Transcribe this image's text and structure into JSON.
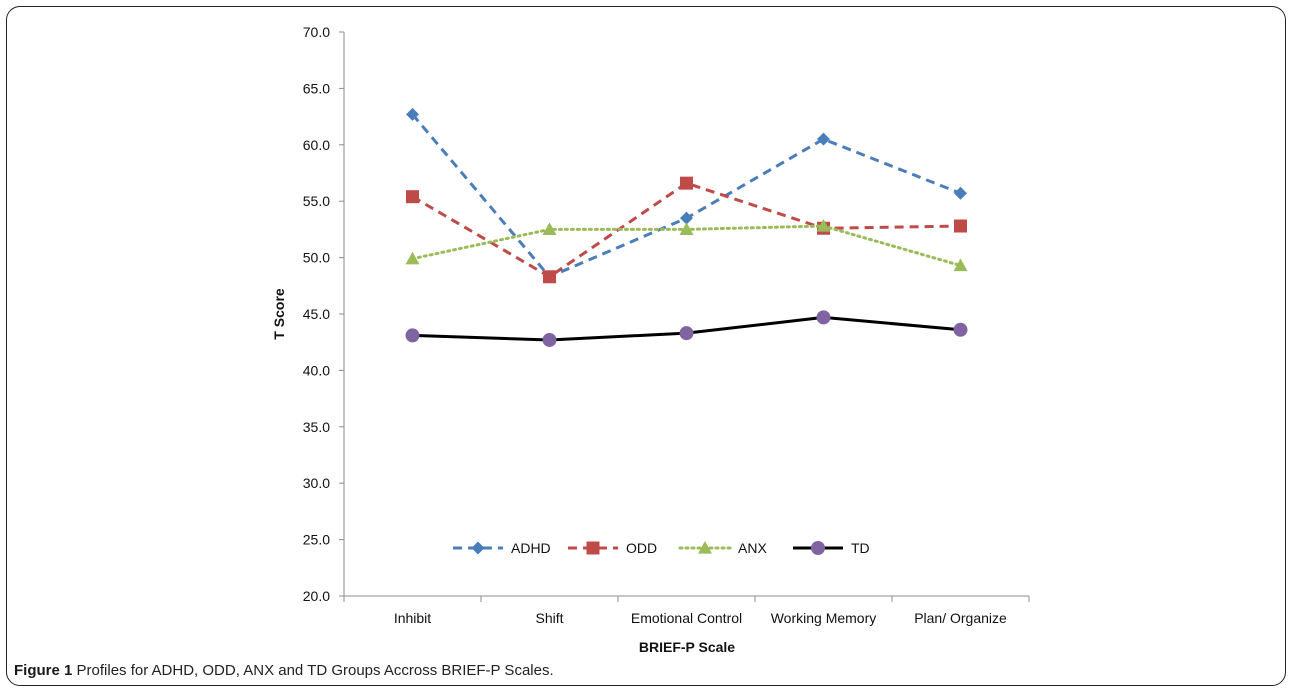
{
  "caption": {
    "label": "Figure 1",
    "text": " Profiles for ADHD, ODD, ANX and TD Groups Accross BRIEF-P Scales."
  },
  "chart_data": {
    "type": "line",
    "categories": [
      "Inhibit",
      "Shift",
      "Emotional Control",
      "Working Memory",
      "Plan/ Organize"
    ],
    "ylabel": "T Score",
    "xlabel": "BRIEF-P Scale",
    "ylim": [
      20.0,
      70.0
    ],
    "yticks": [
      20.0,
      25.0,
      30.0,
      35.0,
      40.0,
      45.0,
      50.0,
      55.0,
      60.0,
      65.0,
      70.0
    ],
    "grid": false,
    "legend_position": "bottom-inside",
    "series": [
      {
        "name": "ADHD",
        "values": [
          62.7,
          48.3,
          53.5,
          60.5,
          55.7
        ],
        "color": "#4a7ebb",
        "marker": "diamond",
        "dash": "dashed"
      },
      {
        "name": "ODD",
        "values": [
          55.4,
          48.3,
          56.6,
          52.6,
          52.8
        ],
        "color": "#be4b48",
        "marker": "square",
        "dash": "dashed"
      },
      {
        "name": "ANX",
        "values": [
          49.9,
          52.5,
          52.5,
          52.8,
          49.3
        ],
        "color": "#9bbb59",
        "marker": "triangle",
        "dash": "dotted"
      },
      {
        "name": "TD",
        "values": [
          43.1,
          42.7,
          43.3,
          44.7,
          43.6
        ],
        "color": "#000000",
        "marker": "circle",
        "dash": "solid",
        "marker_color": "#8064a2"
      }
    ]
  }
}
